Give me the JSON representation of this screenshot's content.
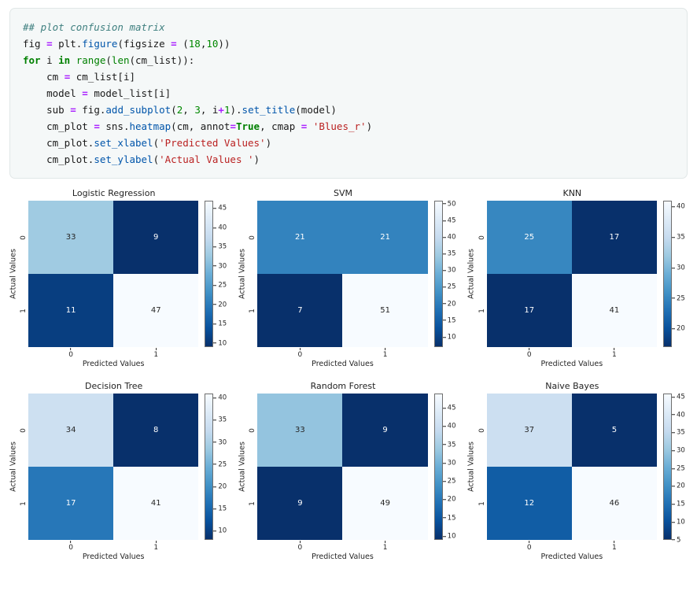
{
  "code_cell": {
    "lines": [
      [
        {
          "t": "## plot confusion matrix",
          "c": "com"
        }
      ],
      [
        {
          "t": "fig "
        },
        {
          "t": "=",
          "c": "op"
        },
        {
          "t": " plt."
        },
        {
          "t": "figure",
          "c": "prop"
        },
        {
          "t": "(figsize "
        },
        {
          "t": "=",
          "c": "op"
        },
        {
          "t": " ("
        },
        {
          "t": "18",
          "c": "num"
        },
        {
          "t": ","
        },
        {
          "t": "10",
          "c": "num"
        },
        {
          "t": "))"
        }
      ],
      [
        {
          "t": "for",
          "c": "kw"
        },
        {
          "t": " i "
        },
        {
          "t": "in",
          "c": "kw"
        },
        {
          "t": " "
        },
        {
          "t": "range",
          "c": "builtin"
        },
        {
          "t": "("
        },
        {
          "t": "len",
          "c": "builtin"
        },
        {
          "t": "(cm_list)):"
        }
      ],
      [
        {
          "t": "    cm "
        },
        {
          "t": "=",
          "c": "op"
        },
        {
          "t": " cm_list[i]"
        }
      ],
      [
        {
          "t": "    model "
        },
        {
          "t": "=",
          "c": "op"
        },
        {
          "t": " model_list[i]"
        }
      ],
      [
        {
          "t": "    sub "
        },
        {
          "t": "=",
          "c": "op"
        },
        {
          "t": " fig."
        },
        {
          "t": "add_subplot",
          "c": "prop"
        },
        {
          "t": "("
        },
        {
          "t": "2",
          "c": "num"
        },
        {
          "t": ", "
        },
        {
          "t": "3",
          "c": "num"
        },
        {
          "t": ", i"
        },
        {
          "t": "+",
          "c": "op"
        },
        {
          "t": "1",
          "c": "num"
        },
        {
          "t": ")."
        },
        {
          "t": "set_title",
          "c": "prop"
        },
        {
          "t": "(model)"
        }
      ],
      [
        {
          "t": "    cm_plot "
        },
        {
          "t": "=",
          "c": "op"
        },
        {
          "t": " sns."
        },
        {
          "t": "heatmap",
          "c": "prop"
        },
        {
          "t": "(cm, annot"
        },
        {
          "t": "=",
          "c": "op"
        },
        {
          "t": "True",
          "c": "kw"
        },
        {
          "t": ", cmap "
        },
        {
          "t": "=",
          "c": "op"
        },
        {
          "t": " "
        },
        {
          "t": "'Blues_r'",
          "c": "str"
        },
        {
          "t": ")"
        }
      ],
      [
        {
          "t": "    cm_plot."
        },
        {
          "t": "set_xlabel",
          "c": "prop"
        },
        {
          "t": "("
        },
        {
          "t": "'Predicted Values'",
          "c": "str"
        },
        {
          "t": ")"
        }
      ],
      [
        {
          "t": "    cm_plot."
        },
        {
          "t": "set_ylabel",
          "c": "prop"
        },
        {
          "t": "("
        },
        {
          "t": "'Actual Values '",
          "c": "str"
        },
        {
          "t": ")"
        }
      ]
    ]
  },
  "figure": {
    "layout": "2 rows x 3 columns",
    "cmap": "Blues_r",
    "colors": {
      "cmap_dark": "#08306b",
      "cmap_light": "#f7fbff",
      "annot_dark_text": "#262626",
      "annot_light_text": "#ffffff"
    }
  },
  "chart_data": [
    {
      "type": "heatmap",
      "title": "Logistic Regression",
      "xlabel": "Predicted Values",
      "ylabel": "Actual Values",
      "x_ticklabels": [
        "0",
        "1"
      ],
      "y_ticklabels": [
        "0",
        "1"
      ],
      "matrix": [
        [
          33,
          9
        ],
        [
          11,
          47
        ]
      ],
      "vmin": 9,
      "vmax": 47,
      "cmap": "Blues_r",
      "colorbar_ticks": [
        10,
        15,
        20,
        25,
        30,
        35,
        40,
        45
      ]
    },
    {
      "type": "heatmap",
      "title": "SVM",
      "xlabel": "Predicted Values",
      "ylabel": "Actual Values",
      "x_ticklabels": [
        "0",
        "1"
      ],
      "y_ticklabels": [
        "0",
        "1"
      ],
      "matrix": [
        [
          21,
          21
        ],
        [
          7,
          51
        ]
      ],
      "vmin": 7,
      "vmax": 51,
      "cmap": "Blues_r",
      "colorbar_ticks": [
        10,
        15,
        20,
        25,
        30,
        35,
        40,
        45,
        50
      ]
    },
    {
      "type": "heatmap",
      "title": "KNN",
      "xlabel": "Predicted Values",
      "ylabel": "Actual Values",
      "x_ticklabels": [
        "0",
        "1"
      ],
      "y_ticklabels": [
        "0",
        "1"
      ],
      "matrix": [
        [
          25,
          17
        ],
        [
          17,
          41
        ]
      ],
      "vmin": 17,
      "vmax": 41,
      "cmap": "Blues_r",
      "colorbar_ticks": [
        20,
        25,
        30,
        35,
        40
      ]
    },
    {
      "type": "heatmap",
      "title": "Decision Tree",
      "xlabel": "Predicted Values",
      "ylabel": "Actual Values",
      "x_ticklabels": [
        "0",
        "1"
      ],
      "y_ticklabels": [
        "0",
        "1"
      ],
      "matrix": [
        [
          34,
          8
        ],
        [
          17,
          41
        ]
      ],
      "vmin": 8,
      "vmax": 41,
      "cmap": "Blues_r",
      "colorbar_ticks": [
        10,
        15,
        20,
        25,
        30,
        35,
        40
      ]
    },
    {
      "type": "heatmap",
      "title": "Random Forest",
      "xlabel": "Predicted Values",
      "ylabel": "Actual Values",
      "x_ticklabels": [
        "0",
        "1"
      ],
      "y_ticklabels": [
        "0",
        "1"
      ],
      "matrix": [
        [
          33,
          9
        ],
        [
          9,
          49
        ]
      ],
      "vmin": 9,
      "vmax": 49,
      "cmap": "Blues_r",
      "colorbar_ticks": [
        10,
        15,
        20,
        25,
        30,
        35,
        40,
        45
      ]
    },
    {
      "type": "heatmap",
      "title": "Naive Bayes",
      "xlabel": "Predicted Values",
      "ylabel": "Actual Values",
      "x_ticklabels": [
        "0",
        "1"
      ],
      "y_ticklabels": [
        "0",
        "1"
      ],
      "matrix": [
        [
          37,
          5
        ],
        [
          12,
          46
        ]
      ],
      "vmin": 5,
      "vmax": 46,
      "cmap": "Blues_r",
      "colorbar_ticks": [
        5,
        10,
        15,
        20,
        25,
        30,
        35,
        40,
        45
      ]
    }
  ]
}
